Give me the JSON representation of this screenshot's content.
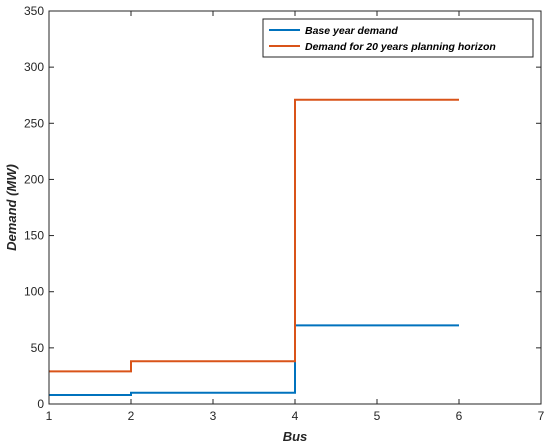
{
  "chart_data": {
    "type": "line",
    "step": true,
    "xlabel": "Bus",
    "ylabel": "Demand (MW)",
    "xlim": [
      1,
      7
    ],
    "ylim": [
      0,
      350
    ],
    "xticks": [
      "1",
      "2",
      "3",
      "4",
      "5",
      "6",
      "7"
    ],
    "yticks": [
      "0",
      "50",
      "100",
      "150",
      "200",
      "250",
      "300",
      "350"
    ],
    "grid": false,
    "legend_position": "top-right",
    "series": [
      {
        "name": "Base year demand",
        "color": "#0072BD",
        "points": [
          [
            1,
            8
          ],
          [
            2,
            8
          ],
          [
            2,
            10
          ],
          [
            4,
            10
          ],
          [
            4,
            70
          ],
          [
            6,
            70
          ]
        ]
      },
      {
        "name": "Demand for 20 years planning horizon",
        "color": "#D95319",
        "points": [
          [
            1,
            29
          ],
          [
            2,
            29
          ],
          [
            2,
            38
          ],
          [
            4,
            38
          ],
          [
            4,
            271
          ],
          [
            6,
            271
          ]
        ]
      }
    ]
  }
}
